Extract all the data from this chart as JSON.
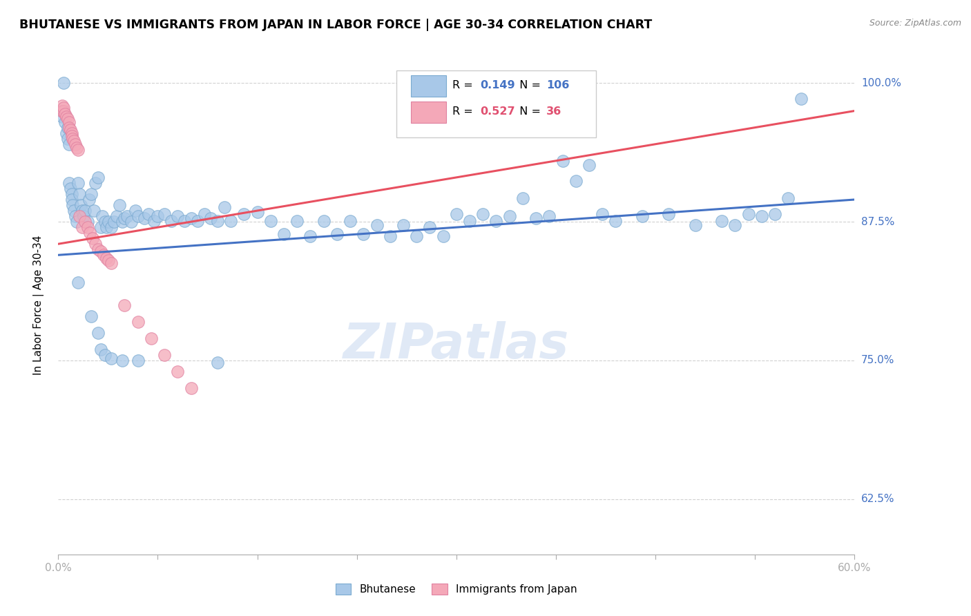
{
  "title": "BHUTANESE VS IMMIGRANTS FROM JAPAN IN LABOR FORCE | AGE 30-34 CORRELATION CHART",
  "source": "Source: ZipAtlas.com",
  "ylabel": "In Labor Force | Age 30-34",
  "yticks_labels": [
    "100.0%",
    "87.5%",
    "75.0%",
    "62.5%"
  ],
  "ytick_vals": [
    1.0,
    0.875,
    0.75,
    0.625
  ],
  "xmin": 0.0,
  "xmax": 0.6,
  "ymin": 0.575,
  "ymax": 1.025,
  "color_blue": "#a8c8e8",
  "color_pink": "#f4a8b8",
  "color_blue_text": "#4472c4",
  "color_pink_text": "#e05070",
  "line_blue": "#4472c4",
  "line_pink": "#e85060",
  "watermark": "ZIPatlas",
  "blue_r": "0.149",
  "blue_n": "106",
  "pink_r": "0.527",
  "pink_n": "36",
  "blue_scatter_x": [
    0.003,
    0.003,
    0.004,
    0.005,
    0.006,
    0.007,
    0.007,
    0.008,
    0.008,
    0.009,
    0.01,
    0.01,
    0.011,
    0.012,
    0.013,
    0.014,
    0.015,
    0.016,
    0.017,
    0.018,
    0.019,
    0.02,
    0.022,
    0.023,
    0.025,
    0.027,
    0.028,
    0.03,
    0.032,
    0.033,
    0.035,
    0.036,
    0.038,
    0.04,
    0.042,
    0.044,
    0.046,
    0.048,
    0.05,
    0.052,
    0.055,
    0.058,
    0.06,
    0.065,
    0.068,
    0.072,
    0.075,
    0.08,
    0.085,
    0.09,
    0.095,
    0.1,
    0.105,
    0.11,
    0.115,
    0.12,
    0.125,
    0.13,
    0.14,
    0.15,
    0.16,
    0.17,
    0.18,
    0.19,
    0.2,
    0.21,
    0.22,
    0.23,
    0.24,
    0.25,
    0.26,
    0.27,
    0.28,
    0.29,
    0.3,
    0.31,
    0.32,
    0.33,
    0.34,
    0.35,
    0.36,
    0.37,
    0.38,
    0.39,
    0.4,
    0.41,
    0.42,
    0.44,
    0.46,
    0.48,
    0.5,
    0.51,
    0.52,
    0.53,
    0.54,
    0.55,
    0.56,
    0.015,
    0.025,
    0.03,
    0.032,
    0.035,
    0.04,
    0.048,
    0.06,
    0.12
  ],
  "blue_scatter_y": [
    0.975,
    0.97,
    1.0,
    0.965,
    0.955,
    0.96,
    0.95,
    0.945,
    0.91,
    0.905,
    0.9,
    0.895,
    0.89,
    0.885,
    0.88,
    0.875,
    0.91,
    0.9,
    0.89,
    0.885,
    0.88,
    0.885,
    0.875,
    0.895,
    0.9,
    0.885,
    0.91,
    0.915,
    0.87,
    0.88,
    0.875,
    0.87,
    0.875,
    0.87,
    0.875,
    0.88,
    0.89,
    0.875,
    0.878,
    0.88,
    0.875,
    0.885,
    0.88,
    0.878,
    0.882,
    0.876,
    0.88,
    0.882,
    0.876,
    0.88,
    0.876,
    0.878,
    0.876,
    0.882,
    0.878,
    0.876,
    0.888,
    0.876,
    0.882,
    0.884,
    0.876,
    0.864,
    0.876,
    0.862,
    0.876,
    0.864,
    0.876,
    0.864,
    0.872,
    0.862,
    0.872,
    0.862,
    0.87,
    0.862,
    0.882,
    0.876,
    0.882,
    0.876,
    0.88,
    0.896,
    0.878,
    0.88,
    0.93,
    0.912,
    0.926,
    0.882,
    0.876,
    0.88,
    0.882,
    0.872,
    0.876,
    0.872,
    0.882,
    0.88,
    0.882,
    0.896,
    0.986,
    0.82,
    0.79,
    0.775,
    0.76,
    0.755,
    0.752,
    0.75,
    0.75,
    0.748
  ],
  "pink_scatter_x": [
    0.003,
    0.003,
    0.004,
    0.004,
    0.005,
    0.006,
    0.007,
    0.008,
    0.008,
    0.009,
    0.01,
    0.01,
    0.011,
    0.012,
    0.013,
    0.014,
    0.015,
    0.016,
    0.018,
    0.02,
    0.022,
    0.024,
    0.026,
    0.028,
    0.03,
    0.032,
    0.034,
    0.036,
    0.038,
    0.04,
    0.05,
    0.06,
    0.07,
    0.08,
    0.09,
    0.1
  ],
  "pink_scatter_y": [
    0.98,
    0.975,
    0.975,
    0.978,
    0.972,
    0.97,
    0.968,
    0.965,
    0.96,
    0.958,
    0.955,
    0.952,
    0.95,
    0.948,
    0.945,
    0.942,
    0.94,
    0.88,
    0.87,
    0.875,
    0.87,
    0.865,
    0.86,
    0.855,
    0.85,
    0.848,
    0.845,
    0.842,
    0.84,
    0.838,
    0.8,
    0.785,
    0.77,
    0.755,
    0.74,
    0.725
  ]
}
